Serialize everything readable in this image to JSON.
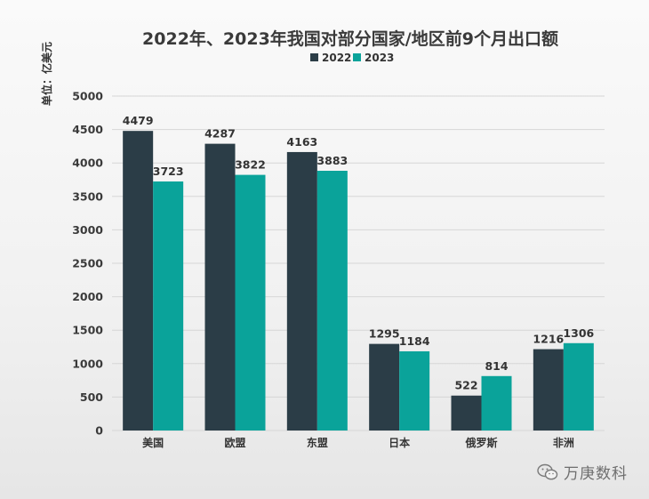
{
  "chart_data": {
    "type": "bar",
    "title": "2022年、2023年我国对部分国家/地区前9个月出口额",
    "ylabel": "单位：亿美元",
    "xlabel": "",
    "categories": [
      "美国",
      "欧盟",
      "东盟",
      "日本",
      "俄罗斯",
      "非洲"
    ],
    "series": [
      {
        "name": "2022",
        "values": [
          4479,
          4287,
          4163,
          1295,
          522,
          1216
        ],
        "color": "#2b3d47"
      },
      {
        "name": "2023",
        "values": [
          3723,
          3822,
          3883,
          1184,
          814,
          1306
        ],
        "color": "#0aa39a"
      }
    ],
    "ylim": [
      0,
      5000
    ],
    "yticks": [
      0,
      500,
      1000,
      1500,
      2000,
      2500,
      3000,
      3500,
      4000,
      4500,
      5000
    ],
    "grid": true,
    "legend": "top-center"
  },
  "watermark": {
    "text": "万庚数科",
    "icon": "wechat-icon"
  }
}
